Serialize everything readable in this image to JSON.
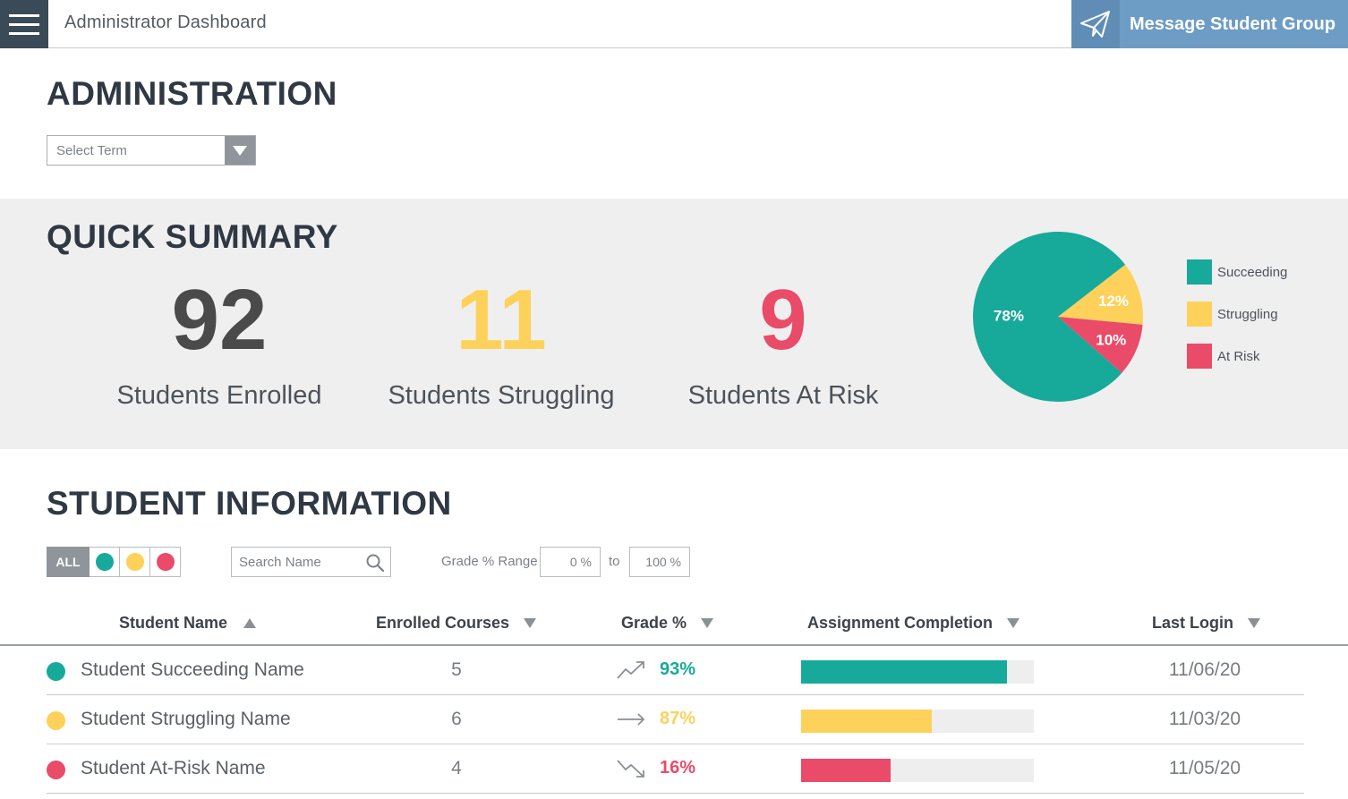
{
  "header": {
    "app_title": "Administrator Dashboard",
    "menu_icon": "hamburger-menu-icon",
    "message_button_label": "Message Student Group",
    "message_icon": "paper-plane-icon"
  },
  "administration": {
    "title": "ADMINISTRATION",
    "term_select_placeholder": "Select Term"
  },
  "summary": {
    "title": "QUICK SUMMARY",
    "stats": [
      {
        "value": "92",
        "label": "Students Enrolled",
        "color": "#4a4a4a"
      },
      {
        "value": "11",
        "label": "Students Struggling",
        "color": "#fdd15a"
      },
      {
        "value": "9",
        "label": "Students At Risk",
        "color": "#e94b68"
      }
    ]
  },
  "chart_data": {
    "type": "pie",
    "slices": [
      {
        "label": "Succeeding",
        "value": 78,
        "display": "78%",
        "color": "#17a99a"
      },
      {
        "label": "Struggling",
        "value": 12,
        "display": "12%",
        "color": "#fdd15a"
      },
      {
        "label": "At Risk",
        "value": 10,
        "display": "10%",
        "color": "#e94b68"
      }
    ],
    "legend_position": "right"
  },
  "students": {
    "title": "STUDENT INFORMATION",
    "filter_all_label": "ALL",
    "filter_colors": [
      "#17a99a",
      "#fdd15a",
      "#e94b68"
    ],
    "search_placeholder": "Search Name",
    "grade_range_label": "Grade % Range",
    "range_min": "0 %",
    "range_to": "to",
    "range_max": "100 %",
    "columns": [
      {
        "label": "Student Name",
        "sort": "asc"
      },
      {
        "label": "Enrolled Courses",
        "sort": "desc"
      },
      {
        "label": "Grade %",
        "sort": "desc"
      },
      {
        "label": "Assignment Completion",
        "sort": "desc"
      },
      {
        "label": "Last Login",
        "sort": "desc"
      }
    ],
    "rows": [
      {
        "name": "Student Succeeding Name",
        "courses": "5",
        "trend": "up",
        "grade": "93%",
        "completion": 0.885,
        "last_login": "11/06/20",
        "color": "#17a99a"
      },
      {
        "name": "Student Struggling Name",
        "courses": "6",
        "trend": "flat",
        "grade": "87%",
        "completion": 0.56,
        "last_login": "11/03/20",
        "color": "#fdd15a"
      },
      {
        "name": "Student At-Risk Name",
        "courses": "4",
        "trend": "down",
        "grade": "16%",
        "completion": 0.385,
        "last_login": "11/05/20",
        "color": "#e94b68"
      }
    ]
  }
}
